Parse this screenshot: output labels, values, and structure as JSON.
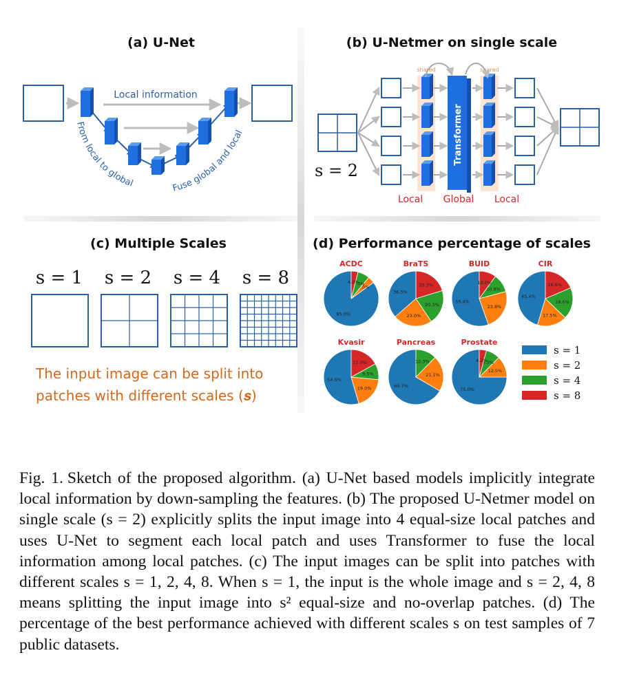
{
  "panel_a": {
    "title": "(a) U-Net",
    "local_info": "Local information",
    "left_label": "From local to global",
    "right_label": "Fuse global and local"
  },
  "panel_b": {
    "title": "(b) U-Netmer on single scale",
    "shared": "shared",
    "transformer": "Transformer",
    "scale": "s = 2",
    "bottom": [
      "Local",
      "Global",
      "Local"
    ]
  },
  "panel_c": {
    "title": "(c) Multiple Scales",
    "scales": [
      "s = 1",
      "s = 2",
      "s = 4",
      "s = 8"
    ],
    "note_line1": "The input image can be split into",
    "note_line2": "patches with different scales (𝒔)"
  },
  "panel_d": {
    "title": "(d) Performance percentage of scales",
    "colors": [
      "#1f77b4",
      "#ff7f0e",
      "#2ca02c",
      "#d62728"
    ]
  },
  "chart_data": {
    "type": "pie",
    "legend": [
      "s = 1",
      "s = 2",
      "s = 4",
      "s = 8"
    ],
    "legend_position": "right",
    "pies": [
      {
        "name": "ACDC",
        "values": [
          85.0,
          4.0,
          7.0,
          4.0
        ],
        "labels": [
          "85.0%",
          "4.0%",
          "7.0%",
          "4.0%"
        ]
      },
      {
        "name": "BraTS",
        "values": [
          36.5,
          23.0,
          20.3,
          20.3
        ],
        "labels": [
          "36.5%",
          "23.0%",
          "20.3%",
          "20.3%"
        ]
      },
      {
        "name": "BUID",
        "values": [
          55.4,
          23.8,
          10.8,
          10.0
        ],
        "labels": [
          "55.4%",
          "23.8%",
          "10.8%",
          "10.0%"
        ]
      },
      {
        "name": "CIR",
        "values": [
          45.4,
          17.5,
          18.6,
          18.6
        ],
        "labels": [
          "45.4%",
          "17.5%",
          "18.6%",
          "18.6%"
        ]
      },
      {
        "name": "Kvasir",
        "values": [
          54.5,
          19.0,
          9.5,
          17.0
        ],
        "labels": [
          "54.5%",
          "19.0%",
          "9.5%",
          "17.0%"
        ]
      },
      {
        "name": "Pancreas",
        "values": [
          66.7,
          21.1,
          12.3,
          0
        ],
        "labels": [
          "66.7%",
          "21.1%",
          "12.3%",
          ""
        ]
      },
      {
        "name": "Prostate",
        "values": [
          75.0,
          12.5,
          8.3,
          4.2
        ],
        "labels": [
          "75.0%",
          "12.5%",
          "8.3%",
          "4.2%"
        ]
      }
    ]
  },
  "caption": {
    "label": "Fig. 1.",
    "text": "Sketch of the proposed algorithm. (a) U-Net based models implicitly integrate local information by down-sampling the features. (b) The proposed U-Netmer model on single scale (s = 2) explicitly splits the input image into 4 equal-size local patches and uses U-Net to segment each local patch and uses Transformer to fuse the local information among local patches. (c) The input images can be split into patches with different scales s = 1, 2, 4, 8. When s = 1, the input is the whole image and s = 2, 4, 8 means splitting the input image into s² equal-size and no-overlap patches. (d) The percentage of the best performance achieved with different scales s on test samples of 7 public datasets."
  }
}
